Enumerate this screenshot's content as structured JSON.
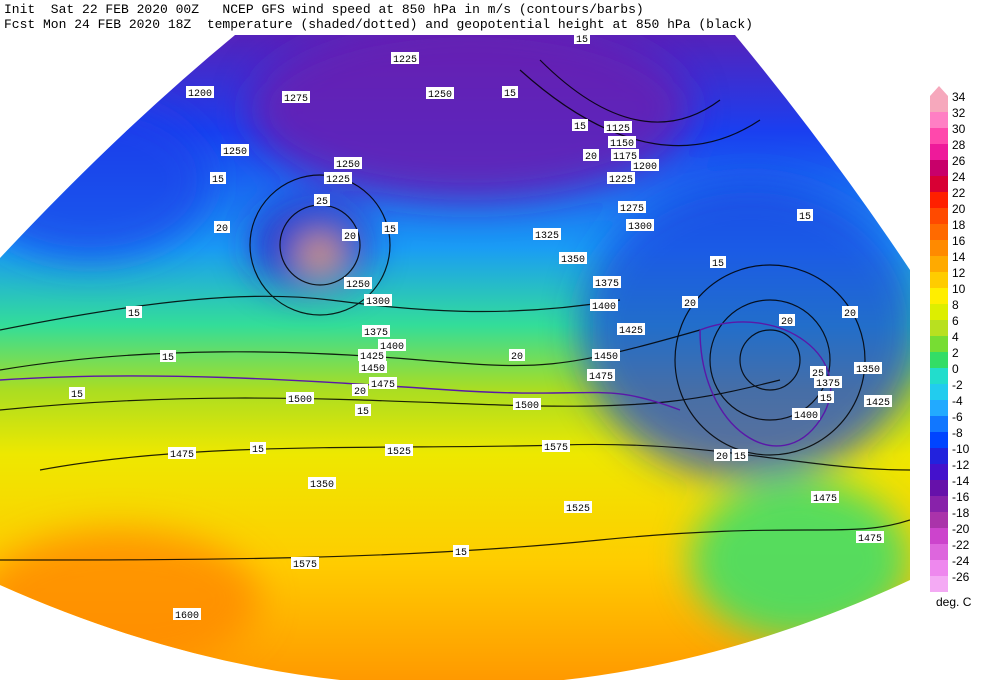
{
  "header": {
    "line1": "Init  Sat 22 FEB 2020 00Z   NCEP GFS wind speed at 850 hPa in m/s (contours/barbs)",
    "line2": "Fcst Mon 24 FEB 2020 18Z  temperature (shaded/dotted) and geopotential height at 850 hPa (black)"
  },
  "colorbar": {
    "unit": "deg. C",
    "levels": [
      {
        "value": 34,
        "color": "#f6a8bc"
      },
      {
        "value": 32,
        "color": "#ff7fc4"
      },
      {
        "value": 30,
        "color": "#ff48ac"
      },
      {
        "value": 28,
        "color": "#ee1a9a"
      },
      {
        "value": 26,
        "color": "#c8006a"
      },
      {
        "value": 24,
        "color": "#d80034"
      },
      {
        "value": 22,
        "color": "#ff2000"
      },
      {
        "value": 20,
        "color": "#ff4a00"
      },
      {
        "value": 18,
        "color": "#ff6a00"
      },
      {
        "value": 16,
        "color": "#ff8a00"
      },
      {
        "value": 14,
        "color": "#ffaa00"
      },
      {
        "value": 12,
        "color": "#ffcc00"
      },
      {
        "value": 10,
        "color": "#ffee00"
      },
      {
        "value": 8,
        "color": "#ddee00"
      },
      {
        "value": 6,
        "color": "#b8e020"
      },
      {
        "value": 4,
        "color": "#77dd33"
      },
      {
        "value": 2,
        "color": "#33dd66"
      },
      {
        "value": 0,
        "color": "#22ddcc"
      },
      {
        "value": -2,
        "color": "#22ccee"
      },
      {
        "value": -4,
        "color": "#22aaff"
      },
      {
        "value": -6,
        "color": "#1177ff"
      },
      {
        "value": -8,
        "color": "#0044ff"
      },
      {
        "value": -10,
        "color": "#2222dd"
      },
      {
        "value": -12,
        "color": "#4411cc"
      },
      {
        "value": -14,
        "color": "#6611aa"
      },
      {
        "value": -16,
        "color": "#8822aa"
      },
      {
        "value": -18,
        "color": "#aa33aa"
      },
      {
        "value": -20,
        "color": "#cc44cc"
      },
      {
        "value": -22,
        "color": "#dd66dd"
      },
      {
        "value": -24,
        "color": "#ee88ee"
      },
      {
        "value": -26,
        "color": "#f4aaf4"
      }
    ]
  },
  "contour_labels": [
    "1225",
    "1200",
    "1275",
    "1250",
    "15",
    "15",
    "1250",
    "15",
    "1250",
    "1225",
    "20",
    "25",
    "15",
    "20",
    "1325",
    "1300",
    "1350",
    "1375",
    "1400",
    "1425",
    "1450",
    "1475",
    "1250",
    "1300",
    "1375",
    "1400",
    "1425",
    "1450",
    "1475",
    "1500",
    "1500",
    "1525",
    "1475",
    "1350",
    "1575",
    "1600",
    "1525",
    "1575",
    "1475",
    "1475",
    "1350",
    "1375",
    "1400",
    "1425",
    "15",
    "20",
    "20",
    "20",
    "15",
    "1125",
    "1150",
    "1175",
    "1200",
    "1225",
    "1275",
    "20",
    "15",
    "15",
    "15",
    "15",
    "15",
    "15",
    "20",
    "20",
    "15",
    "20",
    "15",
    "25",
    "15"
  ]
}
